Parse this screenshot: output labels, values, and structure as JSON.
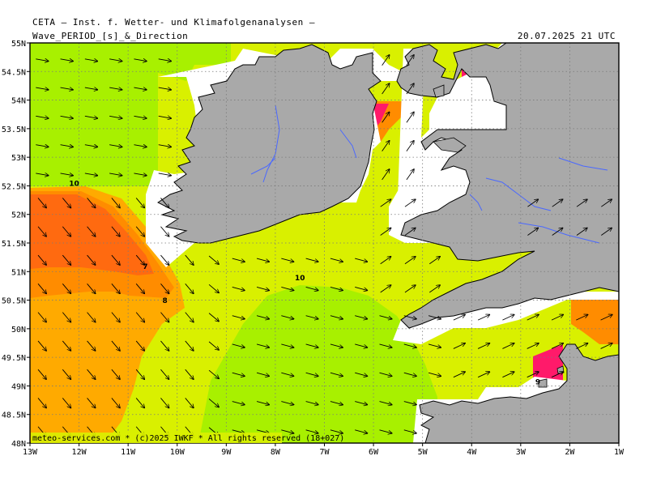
{
  "header": {
    "institute": "CETA — Inst. f. Wetter- und Klimafolgenanalysen —",
    "product": "Wave_PERIOD_[s]_&_Direction",
    "valid_time": "20.07.2025  21 UTC"
  },
  "axes": {
    "lat_labels": [
      "55N",
      "54.5N",
      "54N",
      "53.5N",
      "53N",
      "52.5N",
      "52N",
      "51.5N",
      "51N",
      "50.5N",
      "50N",
      "49.5N",
      "49N",
      "48.5N",
      "48N"
    ],
    "lon_labels": [
      "13W",
      "12W",
      "11W",
      "10W",
      "9W",
      "8W",
      "7W",
      "6W",
      "5W",
      "4W",
      "3W",
      "2W",
      "1W"
    ]
  },
  "contour_labels": [
    {
      "text": "10",
      "lon": -12.1,
      "lat": 52.5
    },
    {
      "text": "7",
      "lon": -10.65,
      "lat": 51.05
    },
    {
      "text": "8",
      "lon": -10.25,
      "lat": 50.45
    },
    {
      "text": "10",
      "lon": -7.5,
      "lat": 50.85
    },
    {
      "text": "9",
      "lon": -2.65,
      "lat": 49.03
    }
  ],
  "footer": {
    "credit": "meteo-services.com * (c)2025 IWKF * All rights reserved (18+027)"
  },
  "colors": {
    "land": "#a9a9a9",
    "period_lt_7": "#ff6a10",
    "period_7_8": "#ff8c00",
    "period_8_9": "#ffaa00",
    "period_9_10": "#d9f000",
    "period_10_plus": "#a8f000",
    "period_short": "#ff1a6a",
    "rivers": "#4a68ff"
  },
  "map": {
    "region": "Celtic Sea, Ireland, SW England, Brittany",
    "wave_direction": "mostly from W to E, trending SE in the southwest quadrant"
  }
}
